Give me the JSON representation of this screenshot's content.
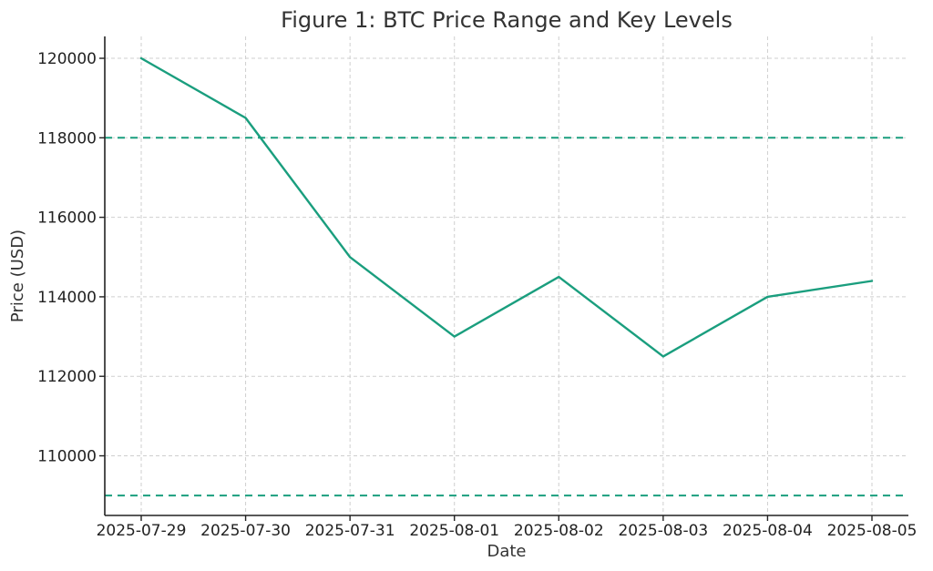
{
  "chart_data": {
    "type": "line",
    "title": "Figure 1: BTC Price Range and Key Levels",
    "xlabel": "Date",
    "ylabel": "Price (USD)",
    "x": [
      "2025-07-29",
      "2025-07-30",
      "2025-07-31",
      "2025-08-01",
      "2025-08-02",
      "2025-08-03",
      "2025-08-04",
      "2025-08-05"
    ],
    "series": [
      {
        "values": [
          120000,
          118500,
          115000,
          113000,
          114500,
          112500,
          114000,
          114400
        ],
        "color": "#1a9e7e"
      }
    ],
    "reference_lines": [
      {
        "value": 118000,
        "style": "dashed",
        "color": "#1a9e7e"
      },
      {
        "value": 109000,
        "style": "dashed",
        "color": "#1a9e7e"
      }
    ],
    "yticks": [
      110000,
      112000,
      114000,
      116000,
      118000,
      120000
    ],
    "ylim": [
      108500,
      120550
    ],
    "grid": true
  }
}
